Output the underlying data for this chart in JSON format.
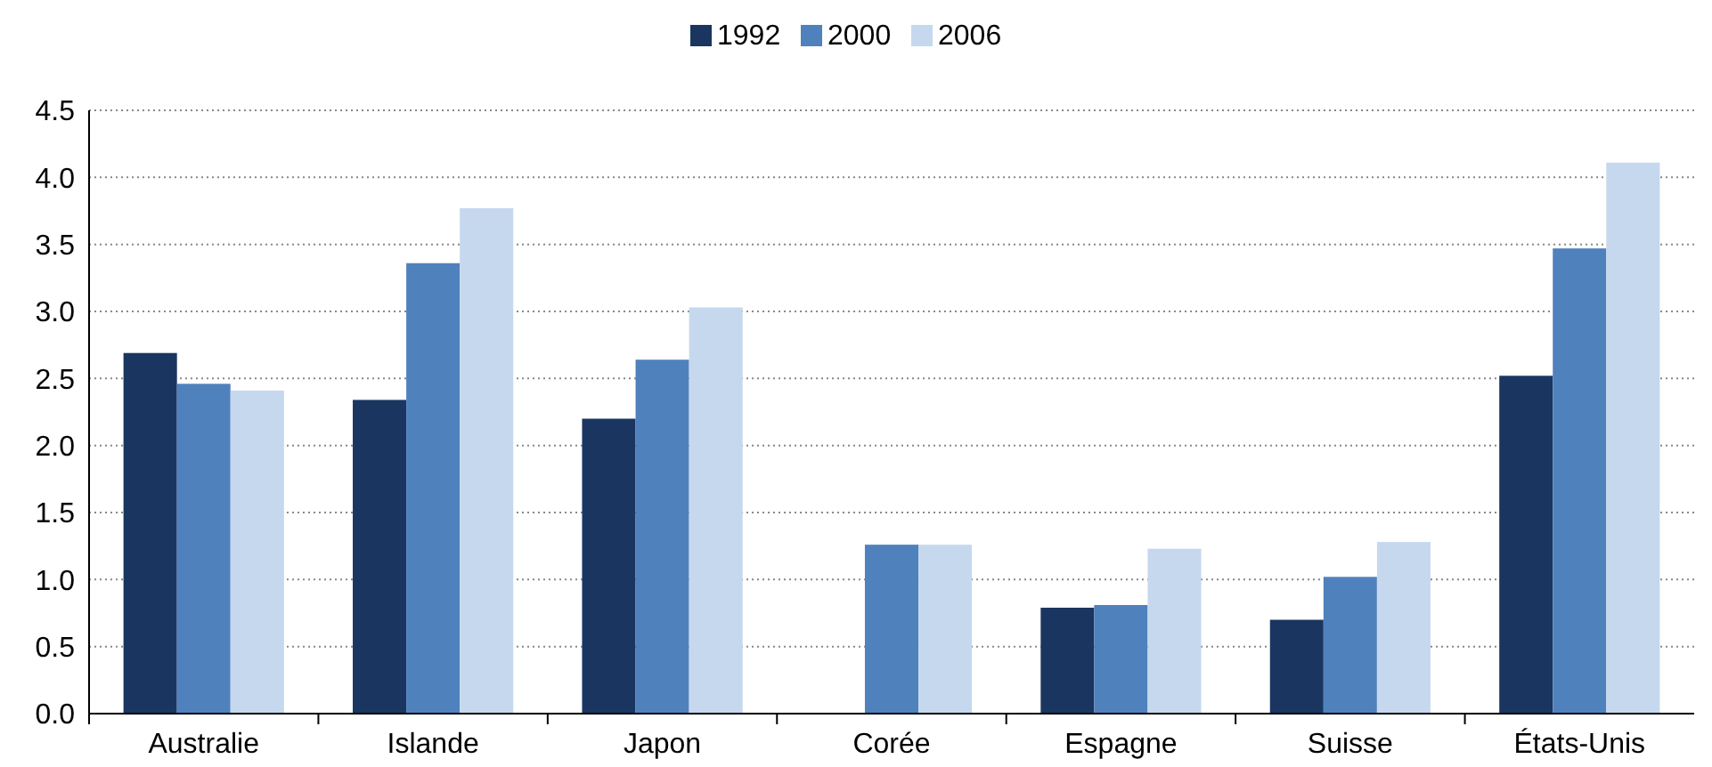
{
  "chart_data": {
    "type": "bar",
    "categories": [
      "Australie",
      "Islande",
      "Japon",
      "Corée",
      "Espagne",
      "Suisse",
      "États-Unis"
    ],
    "series": [
      {
        "name": "1992",
        "color": "#1a3660",
        "values": [
          2.69,
          2.34,
          2.2,
          null,
          0.79,
          0.7,
          2.52
        ]
      },
      {
        "name": "2000",
        "color": "#4f81bd",
        "values": [
          2.46,
          3.36,
          2.64,
          1.26,
          0.81,
          1.02,
          3.47
        ]
      },
      {
        "name": "2006",
        "color": "#c6d8ee",
        "values": [
          2.41,
          3.77,
          3.03,
          1.26,
          1.23,
          1.28,
          4.11
        ]
      }
    ],
    "ylim": [
      0,
      4.5
    ],
    "yticks": [
      {
        "value": 0,
        "label": "0.0"
      },
      {
        "value": 0.5,
        "label": "0.5"
      },
      {
        "value": 1,
        "label": "1.0"
      },
      {
        "value": 1.5,
        "label": "1.5"
      },
      {
        "value": 2,
        "label": "2.0"
      },
      {
        "value": 2.5,
        "label": "2.5"
      },
      {
        "value": 3,
        "label": "3.0"
      },
      {
        "value": 3.5,
        "label": "3.5"
      },
      {
        "value": 4,
        "label": "4.0"
      },
      {
        "value": 4.5,
        "label": "4.5"
      }
    ],
    "grid": "y",
    "legend": "top"
  }
}
